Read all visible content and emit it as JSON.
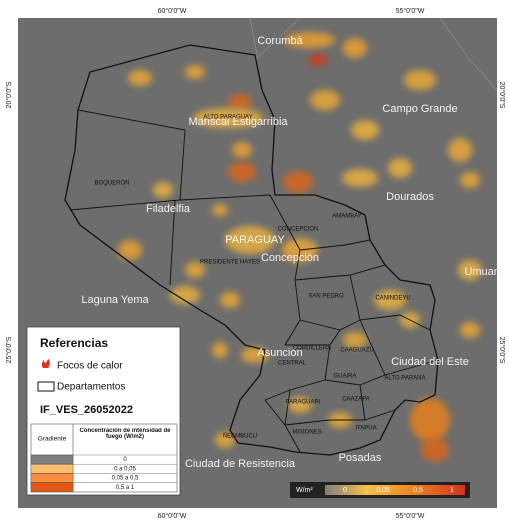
{
  "map": {
    "grid_labels": {
      "top": [
        "60°0'0\"W",
        "55°0'0\"W"
      ],
      "bottom": [
        "60°0'0\"W",
        "55°0'0\"W"
      ],
      "left": [
        "20°0'0\"S",
        "25°0'0\"S"
      ],
      "right": [
        "20°0'0\"S",
        "25°0'0\"S"
      ]
    },
    "places": [
      "Corumbá",
      "Campo Grande",
      "Dourados",
      "Umuara",
      "Filadelfia",
      "Laguna Yema",
      "Mariscal Estigarribia",
      "PARAGUAY",
      "Concepción",
      "Asunción",
      "Ciudad del Este",
      "Ciudad de Resistencia",
      "Posadas"
    ],
    "departments": [
      "ALTO PARAGUAY",
      "BOQUERON",
      "PRESIDENTE HAYES",
      "CONCEPCION",
      "AMAMBAY",
      "SAN PEDRO",
      "CANINDEYU",
      "CORDILLERA",
      "CENTRAL",
      "CAAGUAZU",
      "GUAIRA",
      "ALTO PARANA",
      "PARAGUARI",
      "CAAZAPA",
      "ÑEEMBUCU",
      "MISIONES",
      "ITAPUA"
    ]
  },
  "legend": {
    "title": "Referencias",
    "items": [
      "Focos de calor",
      "Departamentos"
    ],
    "layer": "IF_VES_26052022",
    "table": {
      "header": [
        "Gradiente",
        "Concentración de intensidad de fuego (W/m2)"
      ],
      "rows": [
        "0",
        "0 a 0,05",
        "0,05 a 0,5",
        "0,5 a 1"
      ],
      "colors": [
        "#7f7f7f",
        "#fdbf6f",
        "#fd8d3c",
        "#e6550d"
      ]
    }
  },
  "colorbar": {
    "unit": "W/m²",
    "labels": [
      "0",
      "0,05",
      "0,5",
      "1"
    ]
  }
}
